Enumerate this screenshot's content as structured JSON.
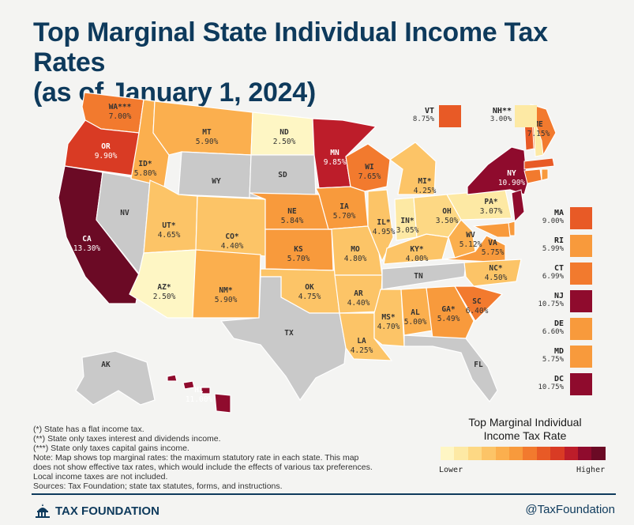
{
  "title_line1": "Top Marginal State Individual Income Tax Rates",
  "title_line2": "(as of January 1, 2024)",
  "colors": {
    "none": "#c9c9c9",
    "scale": [
      "#fef6c4",
      "#fde9a4",
      "#fdd884",
      "#fcc467",
      "#fbaf4e",
      "#f89a3c",
      "#f27a2e",
      "#e85a26",
      "#d93b24",
      "#bd1d2a",
      "#8f0b2d",
      "#6b0a25"
    ]
  },
  "states": [
    {
      "abbr": "WA***",
      "rate": "7.00%",
      "color": "#f27a2e"
    },
    {
      "abbr": "OR",
      "rate": "9.90%",
      "color": "#d93b24"
    },
    {
      "abbr": "CA",
      "rate": "13.30%",
      "color": "#6b0a25"
    },
    {
      "abbr": "NV",
      "rate": "",
      "color": "#c9c9c9"
    },
    {
      "abbr": "ID*",
      "rate": "5.80%",
      "color": "#fbaf4e"
    },
    {
      "abbr": "MT",
      "rate": "5.90%",
      "color": "#fbaf4e"
    },
    {
      "abbr": "WY",
      "rate": "",
      "color": "#c9c9c9"
    },
    {
      "abbr": "UT*",
      "rate": "4.65%",
      "color": "#fcc467"
    },
    {
      "abbr": "AZ*",
      "rate": "2.50%",
      "color": "#fef6c4"
    },
    {
      "abbr": "CO*",
      "rate": "4.40%",
      "color": "#fcc467"
    },
    {
      "abbr": "NM*",
      "rate": "5.90%",
      "color": "#fbaf4e"
    },
    {
      "abbr": "ND",
      "rate": "2.50%",
      "color": "#fef6c4"
    },
    {
      "abbr": "SD",
      "rate": "",
      "color": "#c9c9c9"
    },
    {
      "abbr": "NE",
      "rate": "5.84%",
      "color": "#f89a3c"
    },
    {
      "abbr": "KS",
      "rate": "5.70%",
      "color": "#f89a3c"
    },
    {
      "abbr": "OK",
      "rate": "4.75%",
      "color": "#fcc467"
    },
    {
      "abbr": "TX",
      "rate": "",
      "color": "#c9c9c9"
    },
    {
      "abbr": "MN",
      "rate": "9.85%",
      "color": "#bd1d2a"
    },
    {
      "abbr": "IA",
      "rate": "5.70%",
      "color": "#f89a3c"
    },
    {
      "abbr": "MO",
      "rate": "4.80%",
      "color": "#fcc467"
    },
    {
      "abbr": "AR",
      "rate": "4.40%",
      "color": "#fcc467"
    },
    {
      "abbr": "LA",
      "rate": "4.25%",
      "color": "#fcc467"
    },
    {
      "abbr": "WI",
      "rate": "7.65%",
      "color": "#f27a2e"
    },
    {
      "abbr": "IL*",
      "rate": "4.95%",
      "color": "#fcc467"
    },
    {
      "abbr": "MS*",
      "rate": "4.70%",
      "color": "#fcc467"
    },
    {
      "abbr": "MI*",
      "rate": "4.25%",
      "color": "#fcc467"
    },
    {
      "abbr": "IN*",
      "rate": "3.05%",
      "color": "#fde9a4"
    },
    {
      "abbr": "KY*",
      "rate": "4.00%",
      "color": "#fcc467"
    },
    {
      "abbr": "TN",
      "rate": "",
      "color": "#c9c9c9"
    },
    {
      "abbr": "AL",
      "rate": "5.00%",
      "color": "#fbaf4e"
    },
    {
      "abbr": "GA*",
      "rate": "5.49%",
      "color": "#f89a3c"
    },
    {
      "abbr": "FL",
      "rate": "",
      "color": "#c9c9c9"
    },
    {
      "abbr": "OH",
      "rate": "3.50%",
      "color": "#fdd884"
    },
    {
      "abbr": "WV",
      "rate": "5.12%",
      "color": "#fbaf4e"
    },
    {
      "abbr": "VA",
      "rate": "5.75%",
      "color": "#f89a3c"
    },
    {
      "abbr": "NC*",
      "rate": "4.50%",
      "color": "#fcc467"
    },
    {
      "abbr": "SC",
      "rate": "6.40%",
      "color": "#f27a2e"
    },
    {
      "abbr": "PA*",
      "rate": "3.07%",
      "color": "#fde9a4"
    },
    {
      "abbr": "NY",
      "rate": "10.90%",
      "color": "#8f0b2d"
    },
    {
      "abbr": "ME",
      "rate": "7.15%",
      "color": "#f27a2e"
    },
    {
      "abbr": "AK",
      "rate": "",
      "color": "#c9c9c9"
    },
    {
      "abbr": "HI",
      "rate": "11.00%",
      "color": "#8f0b2d"
    }
  ],
  "callouts_top": [
    {
      "abbr": "VT",
      "rate": "8.75%",
      "color": "#e85a26"
    },
    {
      "abbr": "NH**",
      "rate": "3.00%",
      "color": "#fde9a4"
    }
  ],
  "callouts_side": [
    {
      "abbr": "MA",
      "rate": "9.00%",
      "color": "#e85a26"
    },
    {
      "abbr": "RI",
      "rate": "5.99%",
      "color": "#f89a3c"
    },
    {
      "abbr": "CT",
      "rate": "6.99%",
      "color": "#f27a2e"
    },
    {
      "abbr": "NJ",
      "rate": "10.75%",
      "color": "#8f0b2d"
    },
    {
      "abbr": "DE",
      "rate": "6.60%",
      "color": "#f89a3c"
    },
    {
      "abbr": "MD",
      "rate": "5.75%",
      "color": "#f89a3c"
    },
    {
      "abbr": "DC",
      "rate": "10.75%",
      "color": "#8f0b2d"
    }
  ],
  "legend": {
    "title_line1": "Top Marginal Individual",
    "title_line2": "Income Tax Rate",
    "low_label": "Lower",
    "high_label": "Higher"
  },
  "notes": [
    "(*) State has a flat income tax.",
    "(**) State only taxes interest and dividends income.",
    "(***) State only taxes capital gains income.",
    "Note: Map shows top marginal rates: the maximum statutory rate in each state. This map",
    "does not show effective tax rates, which would include the effects of various tax preferences.",
    "Local income taxes are not included.",
    "Sources: Tax Foundation; state tax statutes, forms, and instructions."
  ],
  "brand": "TAX FOUNDATION",
  "handle": "@TaxFoundation"
}
